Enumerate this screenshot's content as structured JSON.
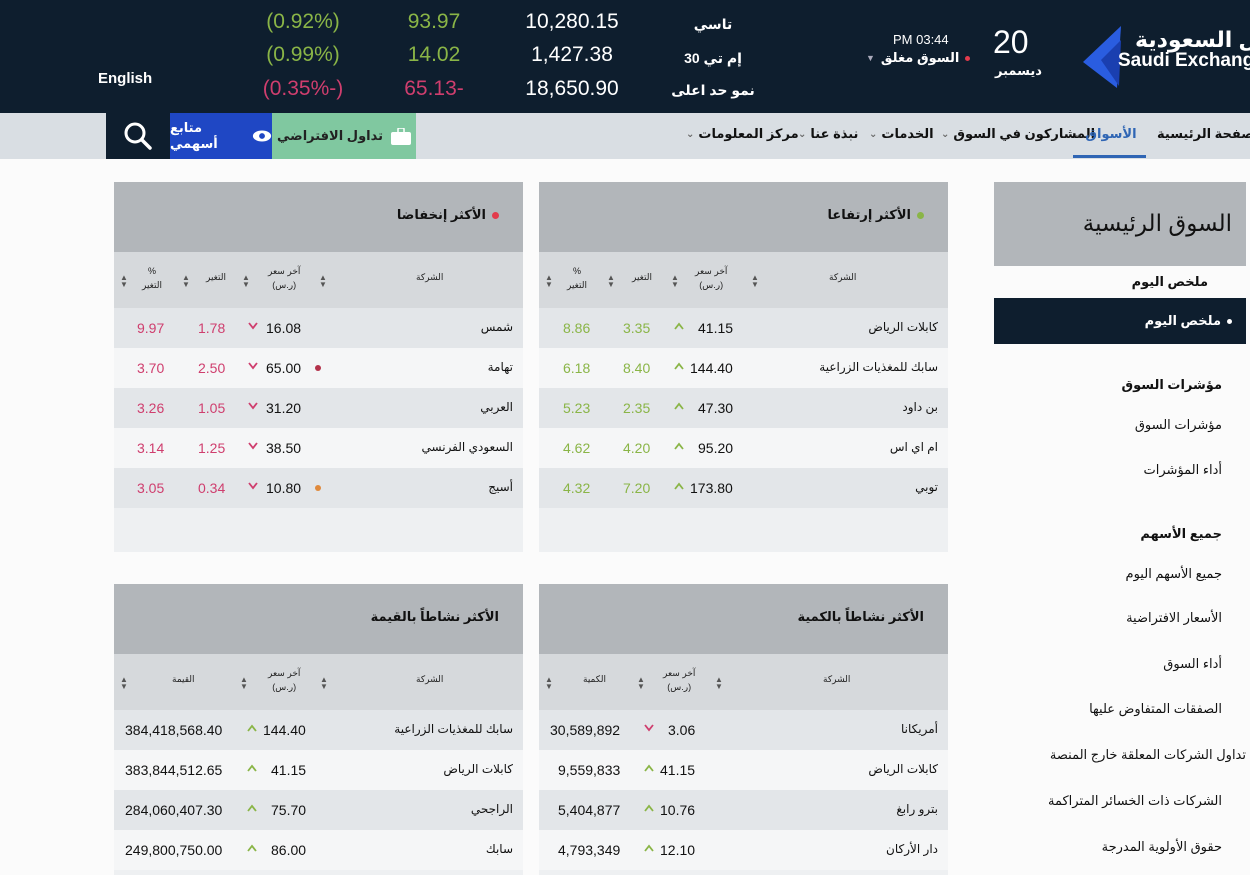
{
  "ticker": {
    "lang": "English",
    "rows": [
      {
        "name": "تاسي",
        "value": "10,280.15",
        "change": "93.97",
        "pct": "(0.92%)",
        "dir": "up"
      },
      {
        "name": "إم تي 30",
        "value": "1,427.38",
        "change": "14.02",
        "pct": "(0.99%)",
        "dir": "up"
      },
      {
        "name": "نمو حد اعلى",
        "value": "18,650.90",
        "change": "65.13-",
        "pct": "(0.35%-)",
        "dir": "down"
      }
    ],
    "time": "PM 03:44",
    "market_status": "السوق مغلق",
    "day": "20",
    "month": "ديسمبر",
    "logo_ar": "تداول السعودية",
    "logo_en": "Saudi Exchange"
  },
  "nav": {
    "items": [
      "الصفحة الرئيسية",
      "الأسواق",
      "المشاركون في السوق",
      "الخدمات",
      "نبذة عنا",
      "مركز المعلومات"
    ],
    "virtual_trading": "تداول الافتراضي",
    "watchlist": "متابع أسهمي"
  },
  "sidebar": {
    "title": "السوق الرئيسية",
    "section1": "ملخص اليوم",
    "active_item": "ملخص اليوم",
    "section2": "مؤشرات السوق",
    "items2": [
      "مؤشرات السوق",
      "أداء المؤشرات"
    ],
    "section3": "جميع الأسهم",
    "items3": [
      "جميع الأسهم اليوم",
      "الأسعار الافتراضية",
      "أداء السوق",
      "الصفقات المتفاوض عليها",
      "تداول الشركات المعلقة خارج المنصة",
      "الشركات ذات الخسائر المتراكمة",
      "حقوق الأولوية المدرجة"
    ]
  },
  "gainers": {
    "title": "الأكثر إرتفاعا",
    "headers": {
      "company": "الشركة",
      "price": "آخر سعر",
      "unit": "(ر.س)",
      "change": "التغير",
      "pct": "%",
      "pct2": "التغير"
    },
    "rows": [
      {
        "name": "كابلات الرياض",
        "price": "41.15",
        "change": "3.35",
        "pct": "8.86"
      },
      {
        "name": "سابك للمغذيات الزراعية",
        "price": "144.40",
        "change": "8.40",
        "pct": "6.18"
      },
      {
        "name": "بن داود",
        "price": "47.30",
        "change": "2.35",
        "pct": "5.23"
      },
      {
        "name": "ام اي اس",
        "price": "95.20",
        "change": "4.20",
        "pct": "4.62"
      },
      {
        "name": "توبي",
        "price": "173.80",
        "change": "7.20",
        "pct": "4.32"
      }
    ]
  },
  "losers": {
    "title": "الأكثر إنخفاضا",
    "headers": {
      "company": "الشركة",
      "price": "آخر سعر",
      "unit": "(ر.س)",
      "change": "التغير",
      "pct": "%",
      "pct2": "التغير"
    },
    "rows": [
      {
        "name": "شمس",
        "price": "16.08",
        "change": "1.78",
        "pct": "9.97"
      },
      {
        "name": "تهامة",
        "price": "65.00",
        "change": "2.50",
        "pct": "3.70"
      },
      {
        "name": "العربي",
        "price": "31.20",
        "change": "1.05",
        "pct": "3.26"
      },
      {
        "name": "السعودي الفرنسي",
        "price": "38.50",
        "change": "1.25",
        "pct": "3.14"
      },
      {
        "name": "أسيج",
        "price": "10.80",
        "change": "0.34",
        "pct": "3.05"
      }
    ]
  },
  "by_volume": {
    "title": "الأكثر نشاطاً بالكمية",
    "headers": {
      "company": "الشركة",
      "price": "آخر سعر",
      "unit": "(ر.س)",
      "qty": "الكمية"
    },
    "rows": [
      {
        "name": "أمريكانا",
        "price": "3.06",
        "qty": "30,589,892",
        "dir": "down"
      },
      {
        "name": "كابلات الرياض",
        "price": "41.15",
        "qty": "9,559,833",
        "dir": "up"
      },
      {
        "name": "بترو رابغ",
        "price": "10.76",
        "qty": "5,404,877",
        "dir": "up"
      },
      {
        "name": "دار الأركان",
        "price": "12.10",
        "qty": "4,793,349",
        "dir": "up"
      }
    ]
  },
  "by_value": {
    "title": "الأكثر نشاطاً بالقيمة",
    "headers": {
      "company": "الشركة",
      "price": "آخر سعر",
      "unit": "(ر.س)",
      "value": "القيمة"
    },
    "rows": [
      {
        "name": "سابك للمغذيات الزراعية",
        "price": "144.40",
        "value": "384,418,568.40"
      },
      {
        "name": "كابلات الرياض",
        "price": "41.15",
        "value": "383,844,512.65"
      },
      {
        "name": "الراجحي",
        "price": "75.70",
        "value": "284,060,407.30"
      },
      {
        "name": "سابك",
        "price": "86.00",
        "value": "249,800,750.00"
      }
    ]
  }
}
